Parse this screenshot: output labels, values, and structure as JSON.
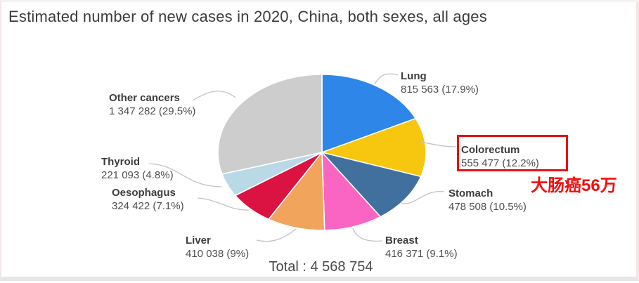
{
  "title": "Estimated number of new cases in 2020, China, both sexes, all ages",
  "chart_data": {
    "type": "pie",
    "title": "Estimated number of new cases in 2020, China, both sexes, all ages",
    "total_label": "Total : 4 568 754",
    "total_value": 4568754,
    "start_angle_deg": -90,
    "direction": "clockwise",
    "legend_position": "around-pie",
    "slices": [
      {
        "label": "Lung",
        "value": 815563,
        "pct": 17.9,
        "value_text": "815 563 (17.9%)",
        "color": "#2e86e8"
      },
      {
        "label": "Colorectum",
        "value": 555477,
        "pct": 12.2,
        "value_text": "555 477 (12.2%)",
        "color": "#f7c70f"
      },
      {
        "label": "Stomach",
        "value": 478508,
        "pct": 10.5,
        "value_text": "478 508 (10.5%)",
        "color": "#41709f"
      },
      {
        "label": "Breast",
        "value": 416371,
        "pct": 9.1,
        "value_text": "416 371 (9.1%)",
        "color": "#fa64c3"
      },
      {
        "label": "Liver",
        "value": 410038,
        "pct": 9.0,
        "value_text": "410 038 (9%)",
        "color": "#f0a45c"
      },
      {
        "label": "Oesophagus",
        "value": 324422,
        "pct": 7.1,
        "value_text": "324 422 (7.1%)",
        "color": "#da1342"
      },
      {
        "label": "Thyroid",
        "value": 221093,
        "pct": 4.8,
        "value_text": "221 093 (4.8%)",
        "color": "#b9d9e6"
      },
      {
        "label": "Other cancers",
        "value": 1347282,
        "pct": 29.5,
        "value_text": "1 347 282 (29.5%)",
        "color": "#cdcdcd"
      }
    ]
  },
  "annotation": {
    "text": "大肠癌56万",
    "text_color": "#f50d0d",
    "highlight_box_color": "#e81010",
    "highlighted_slice": "Colorectum"
  }
}
